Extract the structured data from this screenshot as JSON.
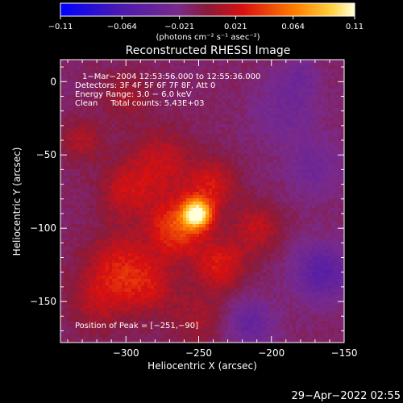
{
  "chart_data": {
    "type": "heatmap",
    "title": "Reconstructed RHESSI Image",
    "xlabel": "Heliocentric X (arcsec)",
    "ylabel": "Heliocentric Y (arcsec)",
    "xlim": [
      -345,
      -150
    ],
    "ylim": [
      -178,
      15
    ],
    "x_ticks": [
      -300,
      -250,
      -200,
      -150
    ],
    "x_tick_labels": [
      "−300",
      "−250",
      "−200",
      "−150"
    ],
    "y_ticks": [
      0,
      -50,
      -100,
      -150
    ],
    "y_tick_labels": [
      "0",
      "−50",
      "−100",
      "−150"
    ],
    "colorbar": {
      "range": [
        -0.11,
        0.11
      ],
      "ticks": [
        -0.11,
        -0.064,
        -0.021,
        0.021,
        0.064,
        0.11
      ],
      "tick_labels": [
        "−0.11",
        "−0.064",
        "−0.021",
        "0.021",
        "0.064",
        "0.11"
      ],
      "unit_label": "(photons cm⁻² s⁻¹ asec⁻²)"
    },
    "annotations": {
      "time": "1−Mar−2004 12:53:56.000 to 12:55:36.000",
      "detectors": "Detectors: 3F 4F 5F 6F 7F 8F, Att 0",
      "energy": "Energy Range: 3.0 − 6.0 keV",
      "clean": "Clean     Total counts: 5.43E+03",
      "peak": "Position of Peak = [−251,−90]"
    },
    "peak_position": [
      -251,
      -90
    ],
    "sources": [
      {
        "x": -251,
        "y": -90,
        "sigma": 7,
        "value": 0.11
      },
      {
        "x": -265,
        "y": -100,
        "sigma": 14,
        "value": 0.055
      },
      {
        "x": -240,
        "y": -70,
        "sigma": 12,
        "value": 0.035
      },
      {
        "x": -275,
        "y": -55,
        "sigma": 16,
        "value": 0.03
      },
      {
        "x": -300,
        "y": -75,
        "sigma": 14,
        "value": 0.03
      },
      {
        "x": -305,
        "y": -125,
        "sigma": 16,
        "value": 0.035
      },
      {
        "x": -285,
        "y": -140,
        "sigma": 14,
        "value": 0.03
      },
      {
        "x": -235,
        "y": -125,
        "sigma": 12,
        "value": 0.04
      },
      {
        "x": -210,
        "y": -100,
        "sigma": 12,
        "value": 0.03
      },
      {
        "x": -320,
        "y": -150,
        "sigma": 14,
        "value": 0.025
      },
      {
        "x": -250,
        "y": -160,
        "sigma": 14,
        "value": 0.02
      },
      {
        "x": -300,
        "y": -10,
        "sigma": 12,
        "value": 0.02
      },
      {
        "x": -330,
        "y": -40,
        "sigma": 10,
        "value": 0.025
      },
      {
        "x": -170,
        "y": -60,
        "sigma": 14,
        "value": -0.02
      },
      {
        "x": -165,
        "y": -130,
        "sigma": 14,
        "value": -0.04
      },
      {
        "x": -190,
        "y": -20,
        "sigma": 16,
        "value": -0.02
      },
      {
        "x": -215,
        "y": -165,
        "sigma": 12,
        "value": -0.03
      },
      {
        "x": -180,
        "y": 5,
        "sigma": 10,
        "value": -0.015
      }
    ],
    "footer_date": "29−Apr−2022 02:55"
  }
}
